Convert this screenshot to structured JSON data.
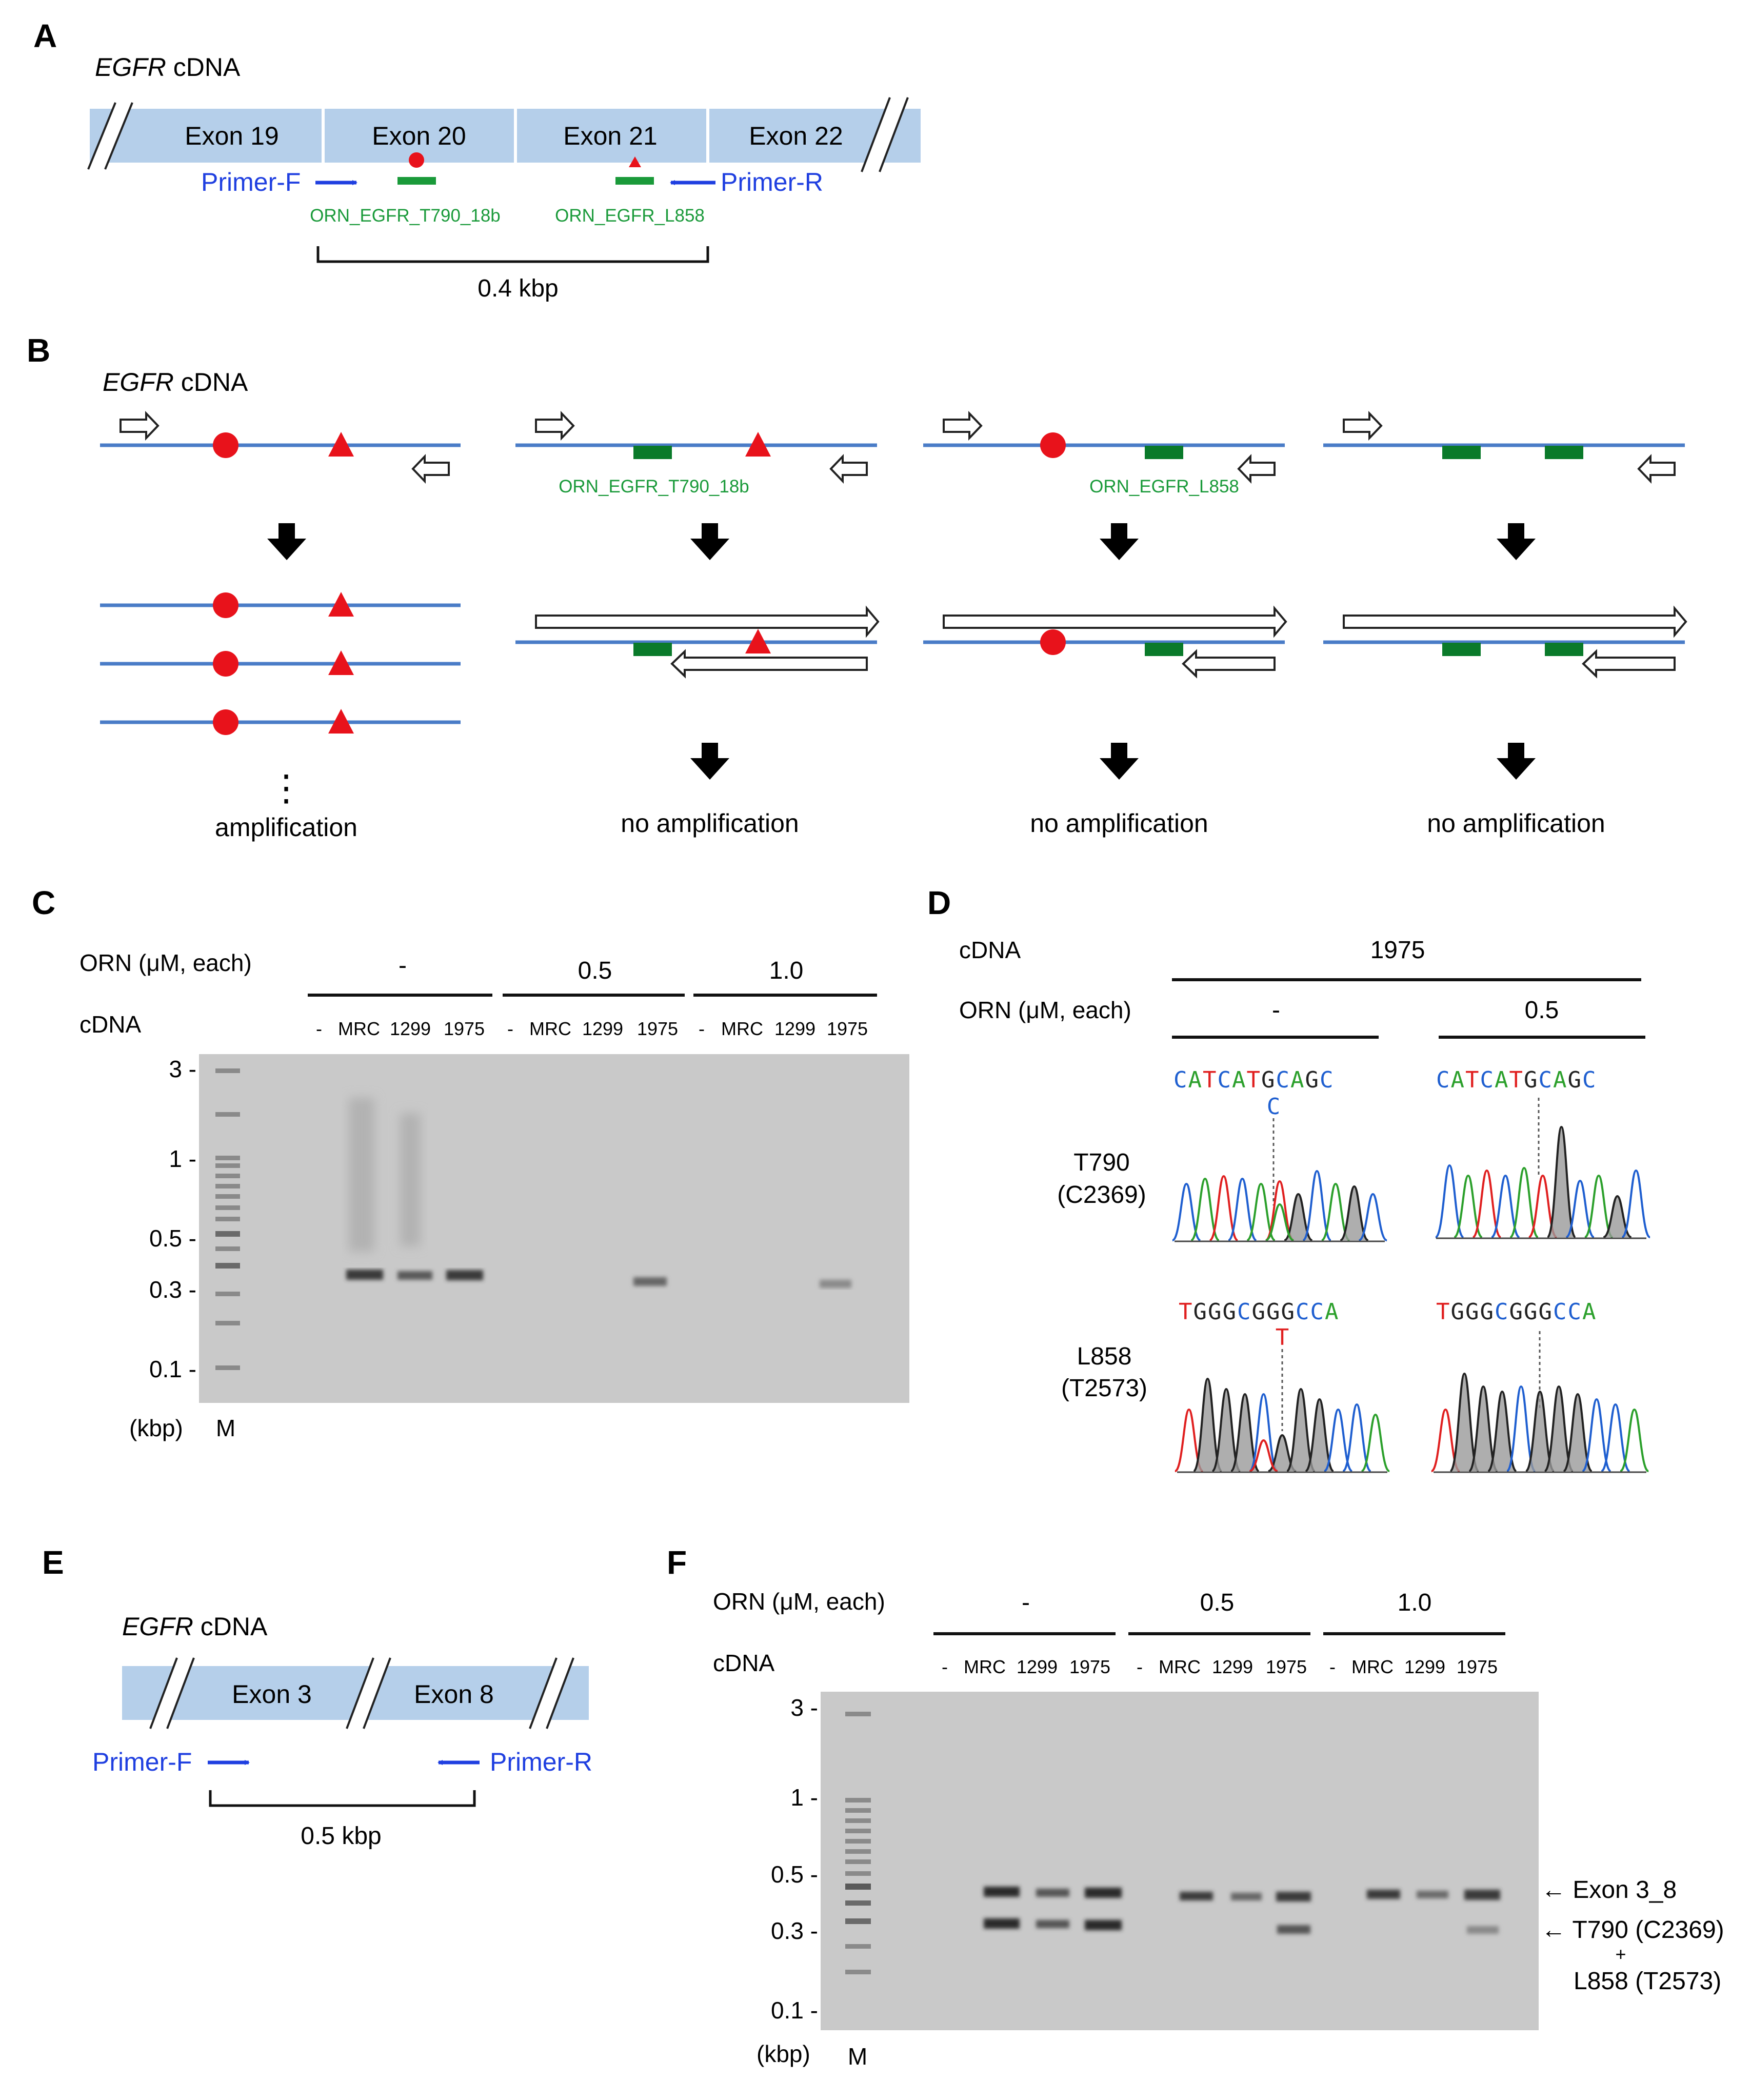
{
  "colors": {
    "bar": "#b5cfea",
    "dna": "#4a7cc7",
    "primer": "#1f3fe0",
    "orn": "#1a9a3a",
    "orn_block": "#0a7a2a",
    "mut": "#e8121b",
    "gel": "#c9c9c9",
    "band": "#3a3a3a",
    "base_A": "#2ca02c",
    "base_C": "#1f5fd0",
    "base_G": "#222222",
    "base_T": "#e02020"
  },
  "panelA": {
    "letter": "A",
    "title_italic": "EGFR",
    "title_rest": " cDNA",
    "exons": [
      "Exon 19",
      "Exon 20",
      "Exon 21",
      "Exon 22"
    ],
    "primer_f": "Primer-F",
    "primer_r": "Primer-R",
    "orn1": "ORN_EGFR_T790_18b",
    "orn2": "ORN_EGFR_L858",
    "size": "0.4 kbp"
  },
  "panelB": {
    "letter": "B",
    "title_italic": "EGFR",
    "title_rest": " cDNA",
    "orn1": "ORN_EGFR_T790_18b",
    "orn2": "ORN_EGFR_L858",
    "ellipsis": "⋮",
    "outcomes": [
      "amplification",
      "no amplification",
      "no amplification",
      "no amplification"
    ]
  },
  "panelC": {
    "letter": "C",
    "orn_label": "ORN (μM, each)",
    "cdna_label": "cDNA",
    "groups": [
      "-",
      "0.5",
      "1.0"
    ],
    "lanes": [
      "-",
      "MRC",
      "1299",
      "1975"
    ],
    "ladder": [
      "3 -",
      "1 -",
      "0.5 -",
      "0.3 -",
      "0.1 -"
    ],
    "unit": "(kbp)",
    "marker": "M"
  },
  "panelD": {
    "letter": "D",
    "cdna_label": "cDNA",
    "cdna_value": "1975",
    "orn_label": "ORN (μM, each)",
    "cond": [
      "-",
      "0.5"
    ],
    "site1_name": "T790",
    "site1_pos": "(C2369)",
    "site2_name": "L858",
    "site2_pos": "(T2573)",
    "seq1": "CATCATGCAGC",
    "seq1_alt": "C",
    "seq2": "TGGGCGGGCCA",
    "seq2_alt": "T"
  },
  "panelE": {
    "letter": "E",
    "title_italic": "EGFR",
    "title_rest": " cDNA",
    "exons": [
      "Exon 3",
      "Exon 8"
    ],
    "primer_f": "Primer-F",
    "primer_r": "Primer-R",
    "size": "0.5 kbp"
  },
  "panelF": {
    "letter": "F",
    "orn_label": "ORN (μM, each)",
    "cdna_label": "cDNA",
    "groups": [
      "-",
      "0.5",
      "1.0"
    ],
    "lanes": [
      "-",
      "MRC",
      "1299",
      "1975"
    ],
    "ladder": [
      "3 -",
      "1 -",
      "0.5 -",
      "0.3 -",
      "0.1 -"
    ],
    "unit": "(kbp)",
    "marker": "M",
    "band1": "← Exon 3_8",
    "band2": "← T790 (C2369)",
    "plus": "+",
    "band2b": "L858 (T2573)"
  }
}
